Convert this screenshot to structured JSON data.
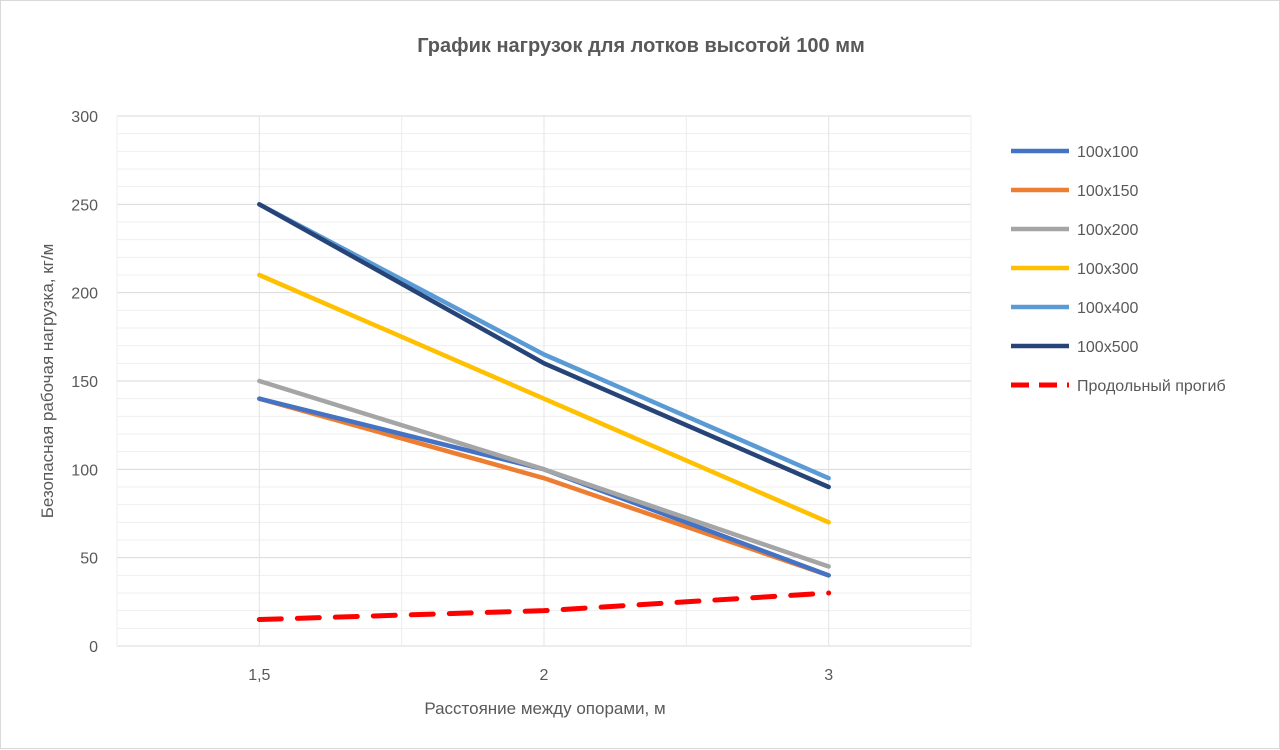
{
  "chart_data": {
    "type": "line",
    "title": "График нагрузок для лотков высотой 100 мм",
    "xlabel": "Расстояние между опорами, м",
    "ylabel": "Безопасная рабочая нагрузка, кг/м",
    "categories": [
      "1,5",
      "2",
      "3"
    ],
    "ylim": [
      0,
      300
    ],
    "yticks": [
      "0",
      "50",
      "100",
      "150",
      "200",
      "250",
      "300"
    ],
    "grid": true,
    "legend": "right",
    "series": [
      {
        "name": "100x100",
        "color": "#4472c4",
        "dash": false,
        "values": [
          140,
          100,
          40
        ]
      },
      {
        "name": "100x150",
        "color": "#ed7d31",
        "dash": false,
        "values": [
          140,
          95,
          40
        ]
      },
      {
        "name": "100x200",
        "color": "#a5a5a5",
        "dash": false,
        "values": [
          150,
          100,
          45
        ]
      },
      {
        "name": "100x300",
        "color": "#ffc000",
        "dash": false,
        "values": [
          210,
          140,
          70
        ]
      },
      {
        "name": "100x400",
        "color": "#5b9bd5",
        "dash": false,
        "values": [
          250,
          165,
          95
        ]
      },
      {
        "name": "100x500",
        "color": "#264478",
        "dash": false,
        "values": [
          250,
          160,
          90
        ]
      },
      {
        "name": "Продольный прогиб",
        "color": "#ff0000",
        "dash": true,
        "values": [
          15,
          20,
          30
        ]
      }
    ]
  }
}
